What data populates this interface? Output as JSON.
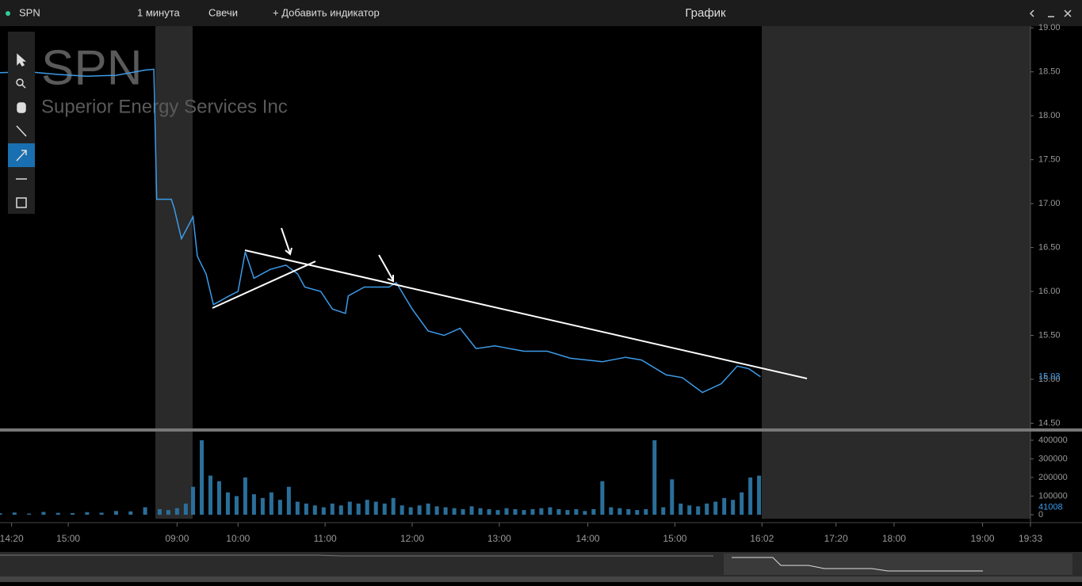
{
  "toolbar": {
    "symbol": "SPN",
    "interval": "1 минута",
    "chart_style": "Свечи",
    "add_indicator": "+ Добавить индикатор",
    "window_title": "График"
  },
  "chart_data": {
    "type": "line",
    "watermark_symbol": "SPN",
    "watermark_name": "Superior Energy Services Inc",
    "xlim": [
      0,
      710
    ],
    "xticks": [
      {
        "value": 8,
        "label": "14:20"
      },
      {
        "value": 47,
        "label": "15:00"
      },
      {
        "value": 122,
        "label": "09:00"
      },
      {
        "value": 164,
        "label": "10:00"
      },
      {
        "value": 224,
        "label": "11:00"
      },
      {
        "value": 284,
        "label": "12:00"
      },
      {
        "value": 344,
        "label": "13:00"
      },
      {
        "value": 405,
        "label": "14:00"
      },
      {
        "value": 465,
        "label": "15:00"
      },
      {
        "value": 525,
        "label": "16:02"
      },
      {
        "value": 576,
        "label": "17:20"
      },
      {
        "value": 616,
        "label": "18:00"
      },
      {
        "value": 677,
        "label": "19:00"
      },
      {
        "value": 710,
        "label": "19:33"
      }
    ],
    "ylim": [
      14.45,
      19.02
    ],
    "yticks": [
      {
        "value": 19,
        "label": "19.00"
      },
      {
        "value": 18.5,
        "label": "18.50"
      },
      {
        "value": 18,
        "label": "18.00"
      },
      {
        "value": 17.5,
        "label": "17.50"
      },
      {
        "value": 17,
        "label": "17.00"
      },
      {
        "value": 16.5,
        "label": "16.50"
      },
      {
        "value": 16,
        "label": "16.00"
      },
      {
        "value": 15.5,
        "label": "15.50"
      },
      {
        "value": 15,
        "label": "15.00"
      },
      {
        "value": 14.5,
        "label": "14.50"
      }
    ],
    "series": [
      {
        "color": "#3d9be9",
        "x": [
          0,
          20,
          40,
          60,
          80,
          100,
          106,
          108,
          118,
          120,
          125,
          133,
          136,
          142,
          147,
          158,
          164,
          169,
          175,
          186,
          197,
          205,
          210,
          221,
          229,
          238,
          240,
          251,
          268,
          273,
          284,
          295,
          306,
          317,
          328,
          341,
          361,
          377,
          393,
          415,
          431,
          442,
          459,
          470,
          484,
          497,
          508,
          516,
          524
        ],
        "values": [
          18.49,
          18.5,
          18.47,
          18.45,
          18.46,
          18.52,
          18.53,
          17.05,
          17.05,
          16.95,
          16.6,
          16.85,
          16.4,
          16.2,
          15.85,
          15.95,
          16.0,
          16.45,
          16.15,
          16.25,
          16.3,
          16.2,
          16.05,
          16.0,
          15.8,
          15.75,
          15.95,
          16.05,
          16.05,
          16.1,
          15.8,
          15.55,
          15.5,
          15.58,
          15.35,
          15.38,
          15.32,
          15.32,
          15.24,
          15.2,
          15.25,
          15.22,
          15.05,
          15.02,
          14.85,
          14.95,
          15.15,
          15.12,
          15.03
        ]
      }
    ],
    "last_price": 15.03,
    "volume": {
      "ylim": [
        0,
        438000
      ],
      "yticks": [
        0,
        100000,
        200000,
        300000,
        400000
      ],
      "color": "#2a6f9a",
      "last": 41008,
      "x": [
        0,
        10,
        20,
        30,
        40,
        50,
        60,
        70,
        80,
        90,
        100,
        110,
        116,
        122,
        128,
        133,
        139,
        145,
        151,
        157,
        163,
        169,
        175,
        181,
        187,
        193,
        199,
        205,
        211,
        217,
        223,
        229,
        235,
        241,
        247,
        253,
        259,
        265,
        271,
        277,
        283,
        289,
        295,
        301,
        307,
        313,
        319,
        325,
        331,
        337,
        343,
        349,
        355,
        361,
        367,
        373,
        379,
        385,
        391,
        397,
        403,
        409,
        415,
        421,
        427,
        433,
        439,
        445,
        451,
        457,
        463,
        469,
        475,
        481,
        487,
        493,
        499,
        505,
        511,
        517,
        523
      ],
      "values": [
        8000,
        12000,
        6000,
        15000,
        10000,
        9000,
        14000,
        11000,
        20000,
        18000,
        40000,
        30000,
        25000,
        35000,
        60000,
        150000,
        400000,
        210000,
        180000,
        120000,
        100000,
        200000,
        110000,
        90000,
        120000,
        80000,
        150000,
        70000,
        60000,
        50000,
        40000,
        60000,
        50000,
        70000,
        60000,
        80000,
        70000,
        60000,
        90000,
        50000,
        40000,
        50000,
        60000,
        45000,
        40000,
        35000,
        30000,
        45000,
        35000,
        30000,
        25000,
        35000,
        30000,
        25000,
        30000,
        35000,
        40000,
        30000,
        25000,
        30000,
        20000,
        30000,
        180000,
        40000,
        35000,
        30000,
        25000,
        30000,
        400000,
        40000,
        190000,
        60000,
        50000,
        45000,
        60000,
        70000,
        90000,
        80000,
        120000,
        200000,
        210000
      ]
    }
  }
}
